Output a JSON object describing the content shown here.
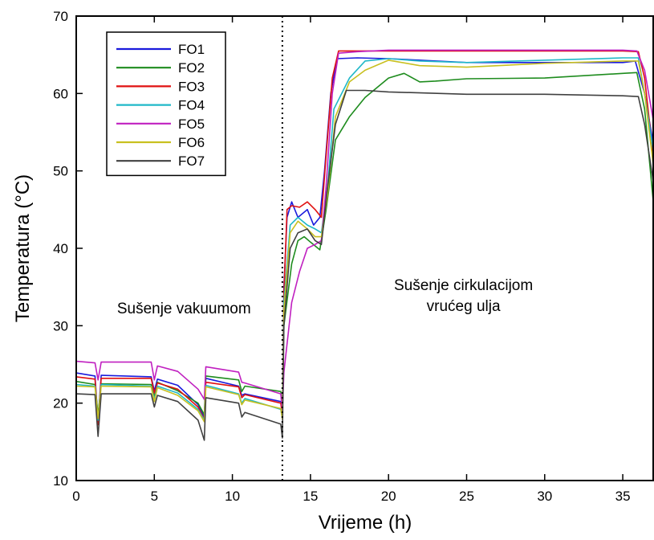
{
  "chart_data": {
    "type": "line",
    "title": "",
    "xlabel": "Vrijeme (h)",
    "ylabel": "Temperatura (°C)",
    "xlim": [
      0,
      37
    ],
    "ylim": [
      10,
      70
    ],
    "xticks": [
      0,
      5,
      10,
      15,
      20,
      25,
      30,
      35
    ],
    "yticks": [
      10,
      20,
      30,
      40,
      50,
      60,
      70
    ],
    "grid": false,
    "legend_position": "top-left",
    "vertical_marker_x": 13.2,
    "annotations": [
      {
        "text": "Sušenje vakuumom",
        "x": 6.9,
        "y": 31.6
      },
      {
        "text": "Sušenje cirkulacijom",
        "x": 24.8,
        "y": 34.6
      },
      {
        "text": "vrućeg ulja",
        "x": 24.8,
        "y": 31.9
      }
    ],
    "series": [
      {
        "name": "FO1",
        "color": "#1a1adc",
        "points": [
          [
            0,
            23.9
          ],
          [
            1.2,
            23.5
          ],
          [
            1.4,
            17.6
          ],
          [
            1.6,
            23.6
          ],
          [
            4.8,
            23.4
          ],
          [
            5.0,
            21.6
          ],
          [
            5.2,
            23.1
          ],
          [
            6.5,
            22.3
          ],
          [
            7.8,
            19.8
          ],
          [
            8.2,
            18.2
          ],
          [
            8.3,
            23.2
          ],
          [
            10.4,
            22.2
          ],
          [
            10.6,
            21.0
          ],
          [
            10.8,
            21.2
          ],
          [
            13.1,
            20.2
          ],
          [
            13.2,
            18.5
          ],
          [
            13.3,
            35
          ],
          [
            13.5,
            44
          ],
          [
            13.8,
            46
          ],
          [
            14.2,
            44
          ],
          [
            14.8,
            45
          ],
          [
            15.2,
            43
          ],
          [
            15.6,
            44
          ],
          [
            15.9,
            50
          ],
          [
            16.3,
            60
          ],
          [
            16.7,
            64.5
          ],
          [
            18,
            64.6
          ],
          [
            20,
            64.5
          ],
          [
            25,
            64
          ],
          [
            30,
            64
          ],
          [
            35,
            64
          ],
          [
            35.8,
            64.2
          ],
          [
            36.4,
            60
          ],
          [
            37,
            53
          ]
        ]
      },
      {
        "name": "FO2",
        "color": "#1e8c1e",
        "points": [
          [
            0,
            22.8
          ],
          [
            1.2,
            22.4
          ],
          [
            1.4,
            18.5
          ],
          [
            1.6,
            22.5
          ],
          [
            4.8,
            22.4
          ],
          [
            5.0,
            20.8
          ],
          [
            5.2,
            22.7
          ],
          [
            6.5,
            21.6
          ],
          [
            7.8,
            20
          ],
          [
            8.2,
            18.5
          ],
          [
            8.3,
            23.5
          ],
          [
            10.4,
            23
          ],
          [
            10.6,
            21.5
          ],
          [
            10.8,
            22.2
          ],
          [
            13.1,
            21.5
          ],
          [
            13.2,
            19
          ],
          [
            13.3,
            30
          ],
          [
            13.8,
            38
          ],
          [
            14.2,
            41
          ],
          [
            14.6,
            41.5
          ],
          [
            15,
            40.8
          ],
          [
            15.6,
            39.8
          ],
          [
            16,
            45
          ],
          [
            16.6,
            54
          ],
          [
            17.5,
            57
          ],
          [
            18.5,
            59.5
          ],
          [
            20,
            62
          ],
          [
            21,
            62.6
          ],
          [
            22,
            61.5
          ],
          [
            23,
            61.6
          ],
          [
            25,
            61.9
          ],
          [
            30,
            62
          ],
          [
            35,
            62.6
          ],
          [
            35.9,
            62.7
          ],
          [
            36.4,
            58
          ],
          [
            37,
            45
          ]
        ]
      },
      {
        "name": "FO3",
        "color": "#e01010",
        "points": [
          [
            0,
            23.4
          ],
          [
            1.2,
            23.1
          ],
          [
            1.4,
            17.2
          ],
          [
            1.6,
            23.2
          ],
          [
            4.8,
            23.2
          ],
          [
            5.0,
            21.3
          ],
          [
            5.2,
            22.6
          ],
          [
            6.5,
            21.8
          ],
          [
            7.8,
            19.5
          ],
          [
            8.2,
            17.9
          ],
          [
            8.3,
            22.7
          ],
          [
            10.4,
            22.1
          ],
          [
            10.6,
            20.7
          ],
          [
            10.8,
            21.1
          ],
          [
            13.1,
            20.0
          ],
          [
            13.2,
            18.6
          ],
          [
            13.3,
            34
          ],
          [
            13.5,
            45
          ],
          [
            13.8,
            45.5
          ],
          [
            14.3,
            45.3
          ],
          [
            14.8,
            46
          ],
          [
            15.3,
            45
          ],
          [
            15.7,
            44
          ],
          [
            16,
            52
          ],
          [
            16.4,
            62
          ],
          [
            16.8,
            65.5
          ],
          [
            18,
            65.5
          ],
          [
            20,
            65.5
          ],
          [
            25,
            65.5
          ],
          [
            30,
            65.5
          ],
          [
            35,
            65.5
          ],
          [
            36,
            65.4
          ],
          [
            36.4,
            62
          ],
          [
            37,
            51
          ]
        ]
      },
      {
        "name": "FO4",
        "color": "#20b8c8",
        "points": [
          [
            0,
            22.4
          ],
          [
            1.2,
            22.2
          ],
          [
            1.4,
            17.8
          ],
          [
            1.6,
            22.4
          ],
          [
            4.8,
            22.2
          ],
          [
            5.0,
            20.5
          ],
          [
            5.2,
            22.2
          ],
          [
            6.5,
            21.3
          ],
          [
            7.8,
            19.2
          ],
          [
            8.2,
            17.8
          ],
          [
            8.3,
            22.3
          ],
          [
            10.4,
            21.2
          ],
          [
            10.6,
            20
          ],
          [
            10.8,
            20.6
          ],
          [
            13.1,
            19.2
          ],
          [
            13.2,
            18
          ],
          [
            13.3,
            33
          ],
          [
            13.7,
            43
          ],
          [
            14.2,
            44
          ],
          [
            14.8,
            43
          ],
          [
            15.3,
            42.5
          ],
          [
            15.7,
            42
          ],
          [
            16.1,
            48
          ],
          [
            16.5,
            58
          ],
          [
            17.5,
            62
          ],
          [
            18.5,
            64.2
          ],
          [
            20,
            64.5
          ],
          [
            22,
            64.2
          ],
          [
            25,
            64
          ],
          [
            30,
            64.3
          ],
          [
            35,
            64.6
          ],
          [
            36,
            64.6
          ],
          [
            36.4,
            60
          ],
          [
            37,
            52
          ]
        ]
      },
      {
        "name": "FO5",
        "color": "#c020c0",
        "points": [
          [
            0,
            25.4
          ],
          [
            1.2,
            25.2
          ],
          [
            1.4,
            23
          ],
          [
            1.6,
            25.3
          ],
          [
            4.8,
            25.3
          ],
          [
            5.0,
            23
          ],
          [
            5.2,
            24.8
          ],
          [
            6.5,
            24.1
          ],
          [
            7.8,
            21.8
          ],
          [
            8.2,
            20.5
          ],
          [
            8.3,
            24.7
          ],
          [
            10.4,
            24.0
          ],
          [
            10.6,
            22.7
          ],
          [
            10.8,
            22.6
          ],
          [
            13.1,
            21.2
          ],
          [
            13.2,
            19.0
          ],
          [
            13.3,
            24
          ],
          [
            13.8,
            33
          ],
          [
            14.3,
            37
          ],
          [
            14.8,
            40
          ],
          [
            15.3,
            40.5
          ],
          [
            15.7,
            41
          ],
          [
            16,
            48
          ],
          [
            16.4,
            60
          ],
          [
            16.8,
            65.2
          ],
          [
            18,
            65.4
          ],
          [
            20,
            65.6
          ],
          [
            25,
            65.6
          ],
          [
            30,
            65.6
          ],
          [
            35,
            65.6
          ],
          [
            35.9,
            65.5
          ],
          [
            36.4,
            63
          ],
          [
            37,
            56
          ]
        ]
      },
      {
        "name": "FO6",
        "color": "#c8c020",
        "points": [
          [
            0,
            22.2
          ],
          [
            1.2,
            22.1
          ],
          [
            1.4,
            18
          ],
          [
            1.6,
            22.2
          ],
          [
            4.8,
            22.1
          ],
          [
            5.0,
            20.2
          ],
          [
            5.2,
            22
          ],
          [
            6.5,
            21
          ],
          [
            7.8,
            19
          ],
          [
            8.2,
            17.6
          ],
          [
            8.3,
            22.1
          ],
          [
            10.4,
            21.1
          ],
          [
            10.6,
            19.8
          ],
          [
            10.8,
            20.4
          ],
          [
            13.1,
            19.3
          ],
          [
            13.2,
            17.9
          ],
          [
            13.3,
            32
          ],
          [
            13.7,
            42
          ],
          [
            14.2,
            43.5
          ],
          [
            14.8,
            42.5
          ],
          [
            15.3,
            41.5
          ],
          [
            15.7,
            41.5
          ],
          [
            16.1,
            47
          ],
          [
            16.6,
            57
          ],
          [
            17.5,
            61.5
          ],
          [
            18.5,
            63
          ],
          [
            20,
            64.3
          ],
          [
            22,
            63.6
          ],
          [
            25,
            63.4
          ],
          [
            30,
            63.9
          ],
          [
            35,
            64.2
          ],
          [
            36,
            64.2
          ],
          [
            36.4,
            60
          ],
          [
            37,
            50
          ]
        ]
      },
      {
        "name": "FO7",
        "color": "#404040",
        "points": [
          [
            0,
            21.2
          ],
          [
            1.2,
            21.1
          ],
          [
            1.4,
            15.7
          ],
          [
            1.6,
            21.2
          ],
          [
            4.8,
            21.2
          ],
          [
            5.0,
            19.5
          ],
          [
            5.2,
            21
          ],
          [
            6.5,
            20.2
          ],
          [
            7.8,
            17.8
          ],
          [
            8.2,
            15.2
          ],
          [
            8.3,
            20.7
          ],
          [
            10.4,
            20.0
          ],
          [
            10.6,
            18.2
          ],
          [
            10.8,
            18.8
          ],
          [
            13.1,
            17.3
          ],
          [
            13.2,
            15.5
          ],
          [
            13.3,
            30
          ],
          [
            13.7,
            40
          ],
          [
            14.2,
            42
          ],
          [
            14.8,
            42.5
          ],
          [
            15.3,
            41
          ],
          [
            15.7,
            40.5
          ],
          [
            16.1,
            48
          ],
          [
            16.6,
            56
          ],
          [
            17.3,
            60.4
          ],
          [
            18.5,
            60.4
          ],
          [
            20,
            60.2
          ],
          [
            25,
            59.9
          ],
          [
            30,
            59.9
          ],
          [
            35,
            59.7
          ],
          [
            36,
            59.6
          ],
          [
            36.4,
            56
          ],
          [
            37,
            48
          ]
        ]
      }
    ]
  }
}
